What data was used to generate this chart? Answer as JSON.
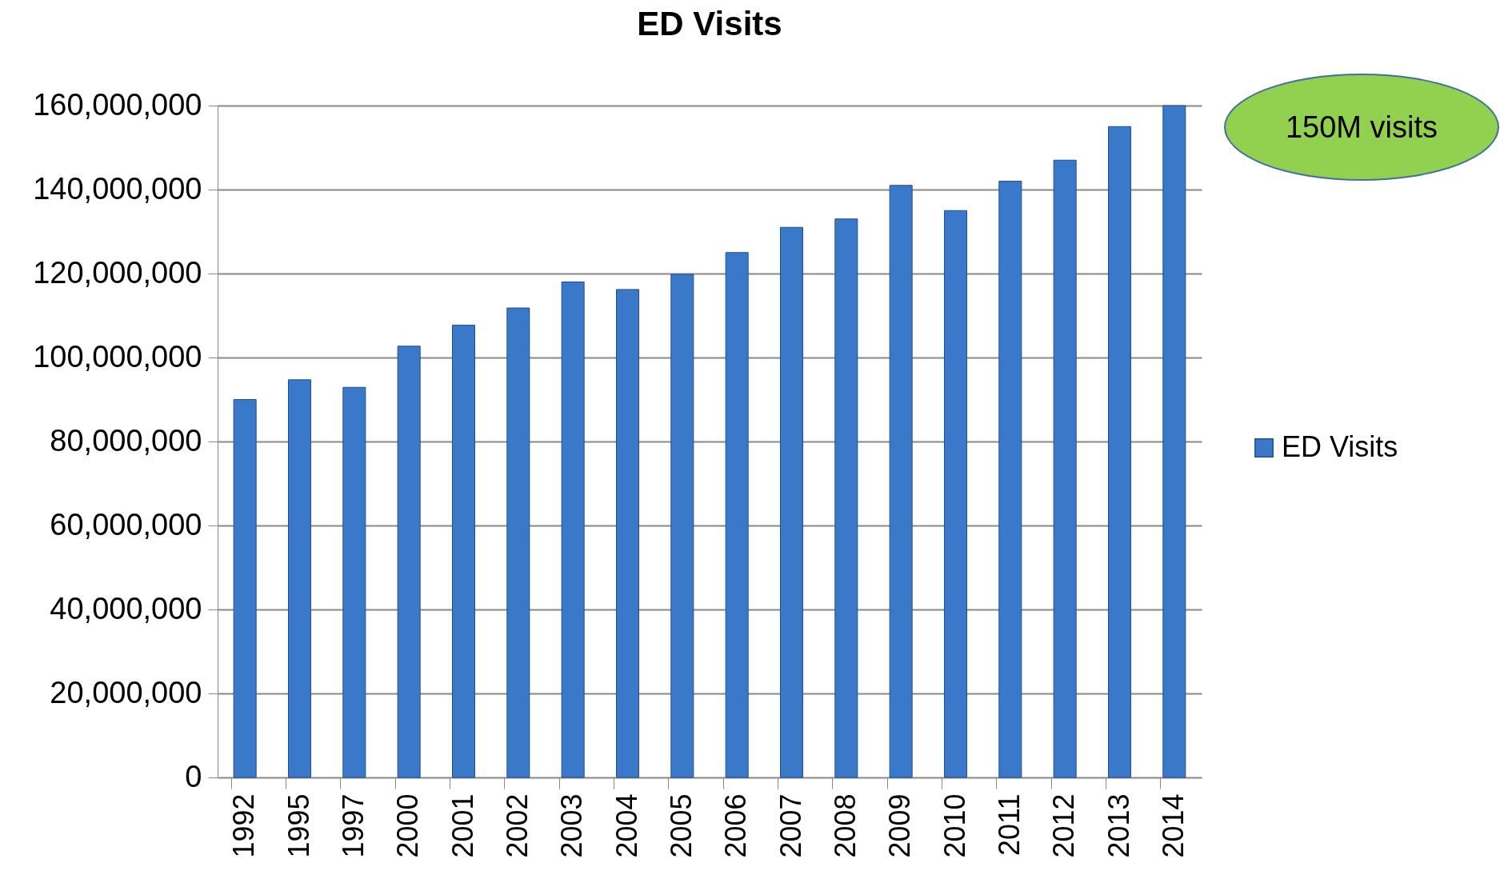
{
  "chart_data": {
    "type": "bar",
    "title": "ED Visits",
    "categories": [
      "1992",
      "1995",
      "1997",
      "2000",
      "2001",
      "2002",
      "2003",
      "2004",
      "2005",
      "2006",
      "2007",
      "2008",
      "2009",
      "2010",
      "2011",
      "2012",
      "2013",
      "2014"
    ],
    "series": [
      {
        "name": "ED Visits",
        "color": "#3a78c9",
        "values": [
          90000000,
          94700000,
          92900000,
          102700000,
          107700000,
          111800000,
          118000000,
          116200000,
          119800000,
          125000000,
          131000000,
          133000000,
          141000000,
          135000000,
          142000000,
          147000000,
          155000000,
          160000000
        ]
      }
    ],
    "ylim": [
      0,
      160000000
    ],
    "yticks": [
      0,
      {
        "value": 20000000,
        "label": "20,000,000"
      },
      {
        "value": 40000000,
        "label": "40,000,000"
      },
      {
        "value": 60000000,
        "label": "60,000,000"
      },
      {
        "value": 80000000,
        "label": "80,000,000"
      },
      {
        "value": 100000000,
        "label": "100,000,000"
      },
      {
        "value": 120000000,
        "label": "120,000,000"
      },
      {
        "value": 140000000,
        "label": "140,000,000"
      },
      {
        "value": 160000000,
        "label": "160,000,000"
      }
    ],
    "grid": "y",
    "legend": "right",
    "annotations": [
      "150M visits"
    ]
  }
}
